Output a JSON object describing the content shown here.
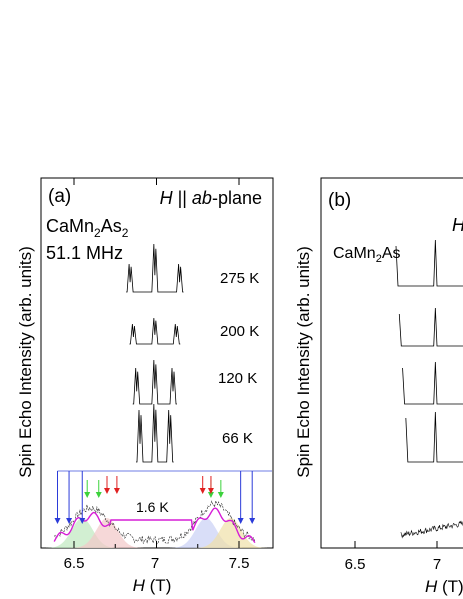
{
  "chart_data": [
    {
      "type": "line",
      "panel_label": "(a)",
      "field_label_prefix": "H",
      "field_label_mid": " || ",
      "field_label_italic": "ab",
      "field_label_suffix": "-plane",
      "compound_base": "CaMn",
      "compound_sub1": "2",
      "compound_mid": "As",
      "compound_sub2": "2",
      "frequency": "51.1 MHz",
      "ylabel": "Spin Echo Intensity (arb. units)",
      "xlabel_var": "H",
      "xlabel_unit": " (T)",
      "xlim": [
        6.3,
        7.62
      ],
      "xticks": [
        "6.5",
        "7",
        "7.5"
      ],
      "xtick_values": [
        6.5,
        7.0,
        7.5
      ],
      "temperatures": [
        "275 K",
        "200 K",
        "120 K",
        "66 K",
        "1.6 K"
      ],
      "peak_fields_K": {
        "275 K": [
          6.84,
          6.99,
          7.14
        ],
        "200 K": [
          6.86,
          6.99,
          7.12
        ],
        "120 K": [
          6.88,
          6.99,
          7.1
        ],
        "66 K": [
          6.9,
          6.99,
          7.08
        ]
      },
      "arrow_fields_1p6K": {
        "blue": [
          6.4,
          6.47,
          6.55,
          7.51,
          7.58
        ],
        "green": [
          6.58,
          6.65,
          7.33,
          7.39
        ],
        "red": [
          6.7,
          6.76,
          7.28,
          7.33
        ],
        "colors": {
          "blue": "#2b3bd9",
          "green": "#3cd23c",
          "red": "#e02020",
          "magenta": "#d61fd6"
        }
      }
    },
    {
      "type": "line",
      "panel_label": "(b)",
      "field_label_prefix": "H",
      "compound_base": "CaMn",
      "compound_sub1": "2",
      "compound_mid": "As",
      "ylabel": "Spin Echo Intensity (arb. units)",
      "xlabel_var": "H",
      "xlabel_unit": " (T)",
      "xticks": [
        "6.5",
        "7"
      ],
      "xtick_values": [
        6.5,
        7.0
      ]
    }
  ]
}
